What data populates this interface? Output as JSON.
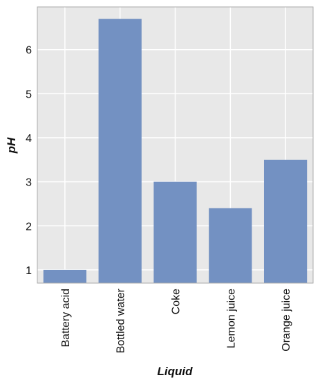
{
  "chart_data": {
    "type": "bar",
    "x_label": "Liquid",
    "y_label": "pH",
    "categories": [
      "Battery acid",
      "Bottled water",
      "Coke",
      "Lemon juice",
      "Orange juice"
    ],
    "values": [
      1.0,
      6.7,
      3.0,
      2.4,
      3.5
    ],
    "color": "#7391c2",
    "ylim": [
      0.7,
      6.97
    ],
    "yticks": [
      1,
      2,
      3,
      4,
      5,
      6
    ],
    "grid": true
  }
}
